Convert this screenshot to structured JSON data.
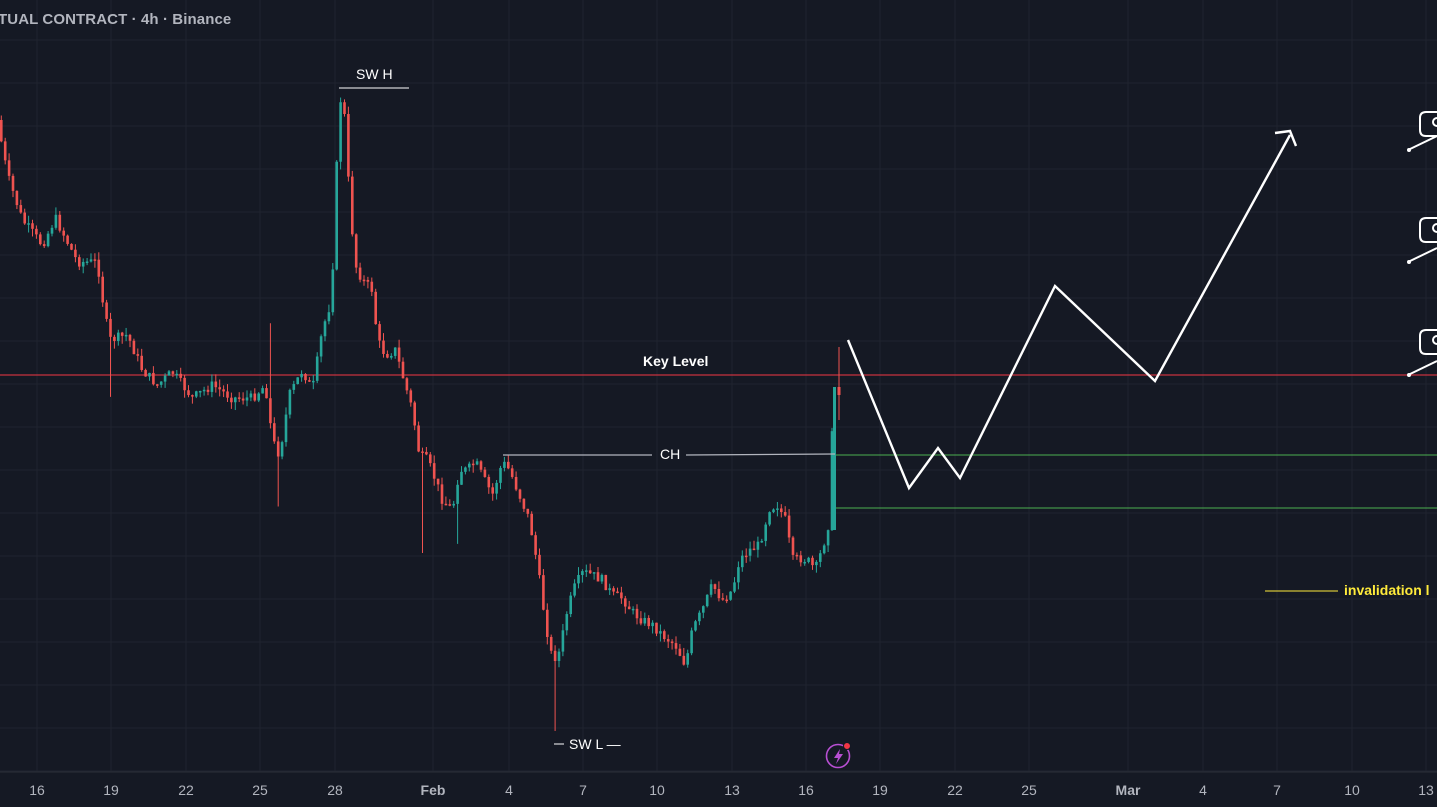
{
  "header": {
    "symbol_title": "TUAL CONTRACT · 4h · Binance"
  },
  "colors": {
    "background": "#151924",
    "grid": "#20242f",
    "up_candle": "#26a69a",
    "down_candle": "#ef5350",
    "key_level_line": "#f23645",
    "ch_line": "#b2b5be",
    "zone_line": "#4caf50",
    "projection": "#ffffff",
    "invalidation": "#ffeb3b",
    "axis_text": "#b2b5be"
  },
  "chart_data": {
    "type": "candlestick",
    "timeframe": "4h",
    "exchange": "Binance",
    "x_axis": {
      "tick_labels": [
        "16",
        "19",
        "22",
        "25",
        "28",
        "Feb",
        "4",
        "7",
        "10",
        "13",
        "16",
        "19",
        "22",
        "25",
        "Mar",
        "4",
        "7",
        "10",
        "13"
      ]
    },
    "annotations": {
      "swing_high": "SW H",
      "swing_low": "SW L —",
      "key_level": "Key Level",
      "change_of_character": "CH",
      "invalidation": "invalidation l"
    },
    "icons": [
      "projection-arrow-icon",
      "flag-callout-icon",
      "lightning-alert-icon"
    ]
  }
}
